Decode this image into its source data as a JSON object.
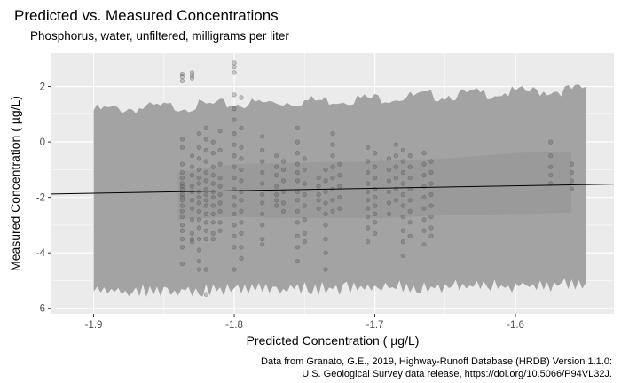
{
  "chart_data": {
    "type": "scatter",
    "title": "Predicted vs. Measured Concentrations",
    "subtitle": "Phosphorus, water, unfiltered, milligrams per liter",
    "xlabel": "Predicted Concentration ( µg/L)",
    "ylabel": "Measured Concentration ( µg/L)",
    "caption_lines": [
      "Data from Granato, G.E., 2019, Highway-Runoff Database (HRDB) Version 1.1.0:",
      "U.S. Geological Survey data release, https://doi.org/10.5066/P94VL32J."
    ],
    "xlim": [
      -1.93,
      -1.53
    ],
    "ylim": [
      -6.2,
      3.2
    ],
    "x_ticks": [
      -1.9,
      -1.8,
      -1.7,
      -1.6
    ],
    "x_tick_labels": [
      "-1.9",
      "-1.8",
      "-1.7",
      "-1.6"
    ],
    "y_ticks": [
      -6,
      -4,
      -2,
      0,
      2
    ],
    "y_tick_labels": [
      "-6",
      "-4",
      "-2",
      "0",
      "2"
    ],
    "grid": true,
    "colors": {
      "panel": "#ebebeb",
      "grid": "#ffffff",
      "outer_band": "#a3a3a3",
      "inner_band": "#9a9a9a",
      "points": "#555555",
      "fit_line": "#000000"
    },
    "fit_line": {
      "x": [
        -1.93,
        -1.53
      ],
      "y": [
        -1.88,
        -1.52
      ]
    },
    "prediction_interval": {
      "x": [
        -1.9,
        -1.55
      ],
      "upper": [
        1.15,
        1.9
      ],
      "lower": [
        -5.4,
        -5.15
      ]
    },
    "confidence_band": {
      "x": [
        -1.84,
        -1.8,
        -1.75,
        -1.7,
        -1.65,
        -1.6,
        -1.56
      ],
      "upper": [
        -1.1,
        -0.8,
        -0.75,
        -0.7,
        -0.6,
        -0.4,
        -0.35
      ],
      "lower": [
        -2.8,
        -2.7,
        -2.75,
        -2.75,
        -2.65,
        -2.6,
        -2.55
      ]
    },
    "point_columns": [
      {
        "x": -1.837,
        "y": [
          2.45,
          2.35,
          2.2,
          0.1,
          -0.2,
          -0.8,
          -1.1,
          -1.3,
          -1.5,
          -1.6,
          -1.7,
          -1.9,
          -2.0,
          -2.1,
          -2.3,
          -2.5,
          -2.7,
          -3.0,
          -3.2,
          -3.5,
          -3.8,
          -4.4
        ]
      },
      {
        "x": -1.83,
        "y": [
          2.5,
          2.4,
          2.3,
          -0.5,
          -0.9,
          -1.2,
          -1.6,
          -1.8,
          -2.1,
          -2.4,
          -2.8,
          -3.3,
          -3.5,
          -3.6
        ]
      },
      {
        "x": -1.825,
        "y": [
          0.3,
          -0.2,
          -0.6,
          -1.0,
          -1.3,
          -1.5,
          -1.8,
          -2.0,
          -2.2,
          -2.5,
          -2.8,
          -3.1,
          -3.5,
          -3.9,
          -4.3,
          -4.6
        ]
      },
      {
        "x": -1.82,
        "y": [
          0.5,
          0.1,
          -0.3,
          -0.7,
          -1.1,
          -1.4,
          -1.7,
          -1.9,
          -2.1,
          -2.3,
          -2.6,
          -2.9,
          -3.2,
          -3.5,
          -4.6,
          -5.5
        ]
      },
      {
        "x": -1.815,
        "y": [
          0.0,
          -0.4,
          -0.9,
          -1.2,
          -1.5,
          -1.8,
          -2.0,
          -2.3,
          -2.6,
          -2.9,
          -3.3,
          -3.5
        ]
      },
      {
        "x": -1.81,
        "y": [
          0.4,
          -0.3,
          -0.8,
          -1.3,
          -1.6,
          -1.9,
          -2.2,
          -2.5,
          -2.9,
          -3.2
        ]
      },
      {
        "x": -1.8,
        "y": [
          2.85,
          2.7,
          2.5,
          1.7,
          1.2,
          0.8,
          0.3,
          -0.1,
          -0.5,
          -0.9,
          -1.3,
          -1.7,
          -2.0,
          -2.3,
          -2.6,
          -3.0,
          -3.4,
          -3.8,
          -4.6
        ]
      },
      {
        "x": -1.795,
        "y": [
          1.6,
          0.5,
          -0.2,
          -0.6,
          -1.0,
          -1.4,
          -1.8,
          -2.1,
          -2.5,
          -2.9,
          -3.3,
          -3.8,
          -4.2
        ]
      },
      {
        "x": -1.78,
        "y": [
          0.2,
          -0.3,
          -0.7,
          -1.1,
          -1.5,
          -1.9,
          -2.2,
          -2.6,
          -3.0,
          -3.5,
          -3.7
        ]
      },
      {
        "x": -1.77,
        "y": [
          -0.5,
          -0.9,
          -1.2,
          -1.6,
          -1.9,
          -2.1,
          -2.3
        ]
      },
      {
        "x": -1.765,
        "y": [
          -0.7,
          -1.0,
          -1.4,
          -1.8,
          -2.2,
          -2.5
        ]
      },
      {
        "x": -1.755,
        "y": [
          0.5,
          0.0,
          -0.4,
          -0.8,
          -1.1,
          -1.4,
          -1.8,
          -2.1,
          -2.5,
          -2.9,
          -3.4,
          -3.8,
          -4.3
        ]
      },
      {
        "x": -1.75,
        "y": [
          -0.6,
          -1.0,
          -1.5,
          -1.9,
          -2.3,
          -2.8,
          -3.3,
          -3.6
        ]
      },
      {
        "x": -1.74,
        "y": [
          -1.3,
          -1.6,
          -1.9,
          -2.1,
          -2.4
        ]
      },
      {
        "x": -1.735,
        "y": [
          -1.0,
          -1.4,
          -1.8,
          -2.2,
          -2.6,
          -3.0,
          -3.5,
          -4.0,
          -4.6
        ]
      },
      {
        "x": -1.73,
        "y": [
          0.3,
          -0.1,
          -0.5,
          -0.9,
          -1.3,
          -1.7,
          -2.1,
          -2.5
        ]
      },
      {
        "x": -1.725,
        "y": [
          -0.8,
          -1.2,
          -1.6,
          -2.0,
          -2.4
        ]
      },
      {
        "x": -1.705,
        "y": [
          -0.2,
          -0.7,
          -1.1,
          -1.5,
          -1.8,
          -2.1,
          -2.4,
          -2.7,
          -3.1,
          -3.6
        ]
      },
      {
        "x": -1.7,
        "y": [
          -0.4,
          -0.9,
          -1.3,
          -1.7,
          -2.0,
          -2.3,
          -2.6,
          -2.9,
          -3.3
        ]
      },
      {
        "x": -1.69,
        "y": [
          -0.6,
          -1.0,
          -1.4,
          -1.8,
          -2.2,
          -2.6
        ]
      },
      {
        "x": -1.685,
        "y": [
          -0.1,
          -0.5,
          -0.9,
          -1.3,
          -1.7,
          -2.1
        ]
      },
      {
        "x": -1.68,
        "y": [
          -0.3,
          -0.7,
          -1.1,
          -1.5,
          -1.9,
          -2.3,
          -2.7,
          -3.2,
          -3.6,
          -4.1
        ]
      },
      {
        "x": -1.675,
        "y": [
          -0.5,
          -0.9,
          -1.3,
          -1.7,
          -2.1,
          -2.5,
          -2.9,
          -3.4
        ]
      },
      {
        "x": -1.665,
        "y": [
          -0.4,
          -0.8,
          -1.2,
          -1.6,
          -2.0,
          -2.4,
          -2.8,
          -3.2,
          -3.7
        ]
      },
      {
        "x": -1.66,
        "y": [
          -0.7,
          -1.1,
          -1.5,
          -1.9,
          -2.3,
          -2.7,
          -3.1,
          -3.4
        ]
      },
      {
        "x": -1.575,
        "y": [
          0.0,
          -0.5,
          -0.9,
          -1.2,
          -1.5
        ]
      },
      {
        "x": -1.56,
        "y": [
          -0.8,
          -1.1,
          -1.4,
          -1.7
        ]
      }
    ]
  }
}
